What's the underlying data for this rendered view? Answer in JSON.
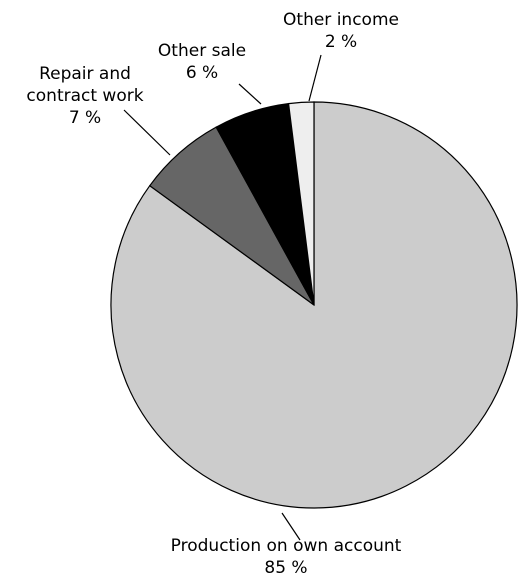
{
  "chart_data": {
    "type": "pie",
    "start_angle_deg": 0,
    "direction": "clockwise",
    "slices": [
      {
        "label_lines": [
          "Production on own account"
        ],
        "value": 85,
        "value_label": "85 %",
        "color": "#cccccc"
      },
      {
        "label_lines": [
          "Repair and",
          "contract work"
        ],
        "value": 7,
        "value_label": "7 %",
        "color": "#666666"
      },
      {
        "label_lines": [
          "Other sale"
        ],
        "value": 6,
        "value_label": "6 %",
        "color": "#000000"
      },
      {
        "label_lines": [
          "Other income"
        ],
        "value": 2,
        "value_label": "2 %",
        "color": "#eeeeee"
      }
    ]
  }
}
